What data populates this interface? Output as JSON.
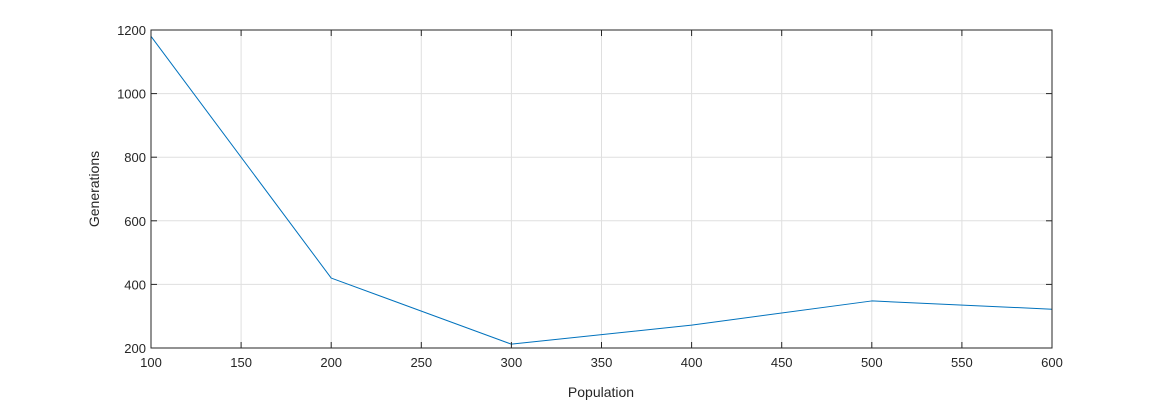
{
  "chart_data": {
    "type": "line",
    "title": "",
    "xlabel": "Population",
    "ylabel": "Generations",
    "xlim": [
      100,
      600
    ],
    "ylim": [
      200,
      1200
    ],
    "xticks": [
      100,
      150,
      200,
      250,
      300,
      350,
      400,
      450,
      500,
      550,
      600
    ],
    "yticks": [
      200,
      400,
      600,
      800,
      1000,
      1200
    ],
    "grid": true,
    "legend": "none",
    "series": [
      {
        "color": "#0072bd",
        "x": [
          100,
          200,
          300,
          400,
          500,
          600
        ],
        "y": [
          1180,
          420,
          212,
          272,
          348,
          322
        ]
      }
    ]
  }
}
